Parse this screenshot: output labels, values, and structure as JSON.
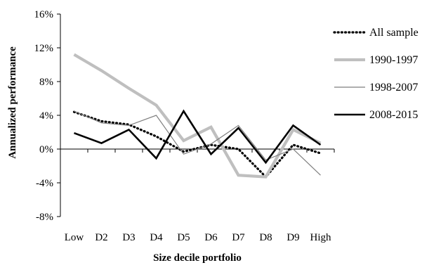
{
  "chart_data": {
    "type": "line",
    "title": "",
    "xlabel": "Size decile portfolio",
    "ylabel": "Annualized performance",
    "categories": [
      "Low",
      "D2",
      "D3",
      "D4",
      "D5",
      "D6",
      "D7",
      "D8",
      "D9",
      "High"
    ],
    "ylim": [
      -8,
      16
    ],
    "yticks": [
      -8,
      -4,
      0,
      4,
      8,
      12,
      16
    ],
    "ytick_labels": [
      "-8%",
      "-4%",
      "0%",
      "4%",
      "8%",
      "12%",
      "16%"
    ],
    "grid": false,
    "legend_position": "right",
    "series": [
      {
        "name": "All sample",
        "color": "#000000",
        "style": "dotted",
        "values": [
          4.4,
          3.3,
          2.9,
          1.5,
          -0.3,
          0.5,
          0.0,
          -3.3,
          0.5,
          -0.5
        ]
      },
      {
        "name": "1990-1997",
        "color": "#bfbfbf",
        "style": "thick",
        "values": [
          11.2,
          9.3,
          7.2,
          5.2,
          1.0,
          2.6,
          -3.1,
          -3.3,
          2.3,
          0.7
        ]
      },
      {
        "name": "1998-2007",
        "color": "#7f7f7f",
        "style": "thin",
        "values": [
          4.5,
          3.1,
          2.8,
          4.0,
          -0.6,
          0.6,
          2.8,
          -1.3,
          0.0,
          -3.1
        ]
      },
      {
        "name": "2008-2015",
        "color": "#000000",
        "style": "solid",
        "values": [
          1.9,
          0.7,
          2.3,
          -1.1,
          4.5,
          -0.6,
          2.5,
          -1.6,
          2.8,
          0.5
        ]
      }
    ]
  }
}
